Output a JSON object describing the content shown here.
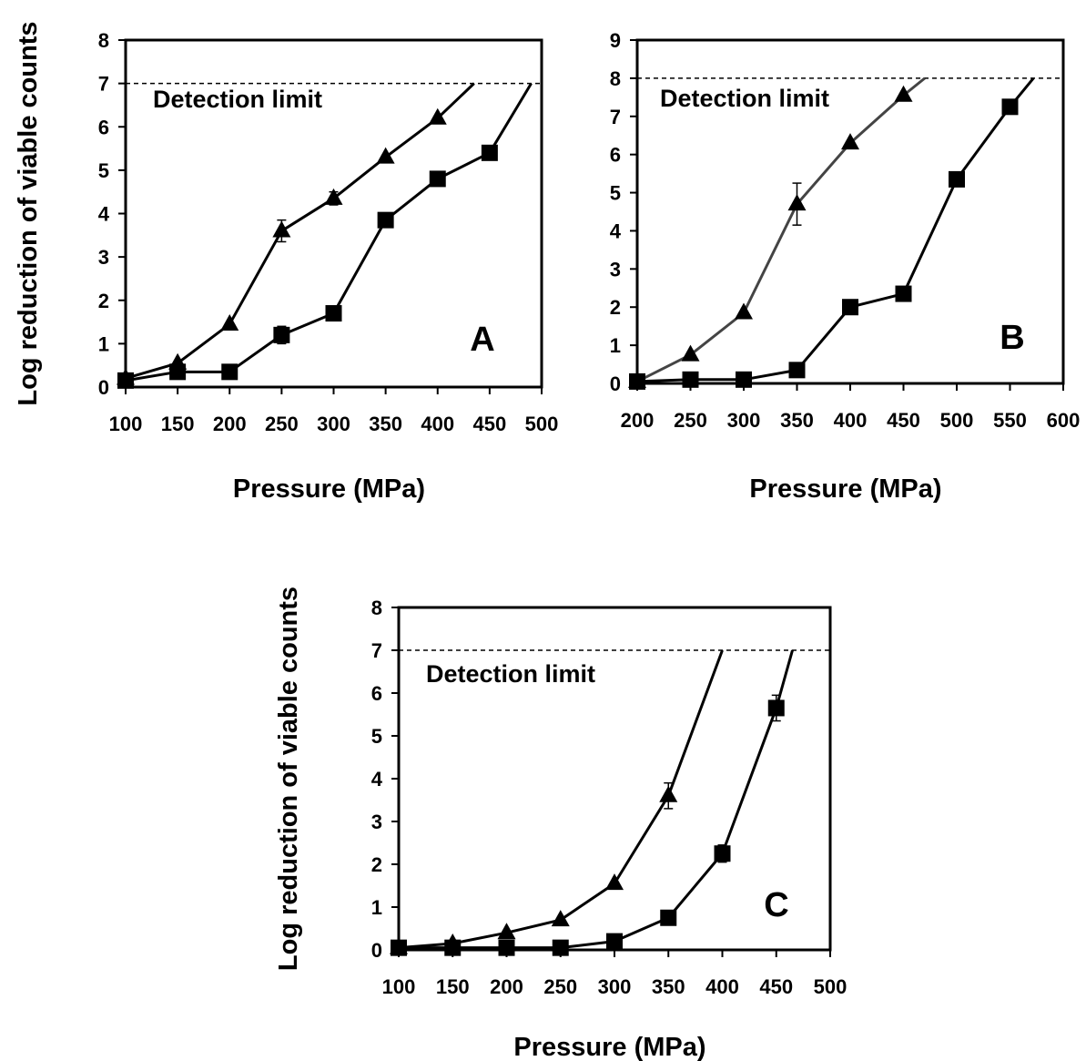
{
  "chart_data": [
    {
      "type": "line",
      "panel_label": "A",
      "xlabel": "Pressure (MPa)",
      "ylabel": "Log reduction of viable counts",
      "x_ticks": [
        100,
        150,
        200,
        250,
        300,
        350,
        400,
        450,
        500
      ],
      "y_ticks": [
        0,
        1,
        2,
        3,
        4,
        5,
        6,
        7,
        8
      ],
      "xlim": [
        100,
        500
      ],
      "ylim": [
        0,
        8
      ],
      "grid": false,
      "detection_limit": {
        "label": "Detection limit",
        "value": 7
      },
      "series": [
        {
          "marker": "triangle",
          "x": [
            100,
            150,
            200,
            250,
            300,
            350,
            400
          ],
          "y": [
            0.2,
            0.55,
            1.45,
            3.6,
            4.35,
            5.3,
            6.2
          ],
          "err": [
            0,
            0,
            0,
            0.25,
            0.15,
            0,
            0
          ],
          "extension_to": [
            435,
            7
          ]
        },
        {
          "marker": "square",
          "x": [
            100,
            150,
            200,
            250,
            300,
            350,
            400,
            450
          ],
          "y": [
            0.15,
            0.35,
            0.35,
            1.2,
            1.7,
            3.85,
            4.8,
            5.4
          ],
          "err": [
            0,
            0,
            0,
            0.2,
            0,
            0,
            0,
            0
          ],
          "extension_to": [
            490,
            7
          ]
        }
      ]
    },
    {
      "type": "line",
      "panel_label": "B",
      "xlabel": "Pressure (MPa)",
      "ylabel": "",
      "x_ticks": [
        200,
        250,
        300,
        350,
        400,
        450,
        500,
        550,
        600
      ],
      "y_ticks": [
        0,
        1,
        2,
        3,
        4,
        5,
        6,
        7,
        8,
        9
      ],
      "xlim": [
        200,
        600
      ],
      "ylim": [
        0,
        9
      ],
      "grid": false,
      "detection_limit": {
        "label": "Detection limit",
        "value": 8
      },
      "series": [
        {
          "marker": "triangle",
          "x": [
            200,
            250,
            300,
            350,
            400,
            450
          ],
          "y": [
            0.05,
            0.75,
            1.85,
            4.7,
            6.3,
            7.55
          ],
          "err": [
            0,
            0,
            0,
            0.55,
            0,
            0
          ],
          "extension_to": [
            470,
            8
          ]
        },
        {
          "marker": "square",
          "x": [
            200,
            250,
            300,
            350,
            400,
            450,
            500,
            550
          ],
          "y": [
            0.05,
            0.1,
            0.1,
            0.35,
            2.0,
            2.35,
            5.35,
            7.25
          ],
          "err": [
            0,
            0,
            0,
            0,
            0,
            0,
            0,
            0
          ],
          "extension_to": [
            572,
            8
          ]
        }
      ]
    },
    {
      "type": "line",
      "panel_label": "C",
      "xlabel": "Pressure (MPa)",
      "ylabel": "Log reduction of viable counts",
      "x_ticks": [
        100,
        150,
        200,
        250,
        300,
        350,
        400,
        450,
        500
      ],
      "y_ticks": [
        0,
        1,
        2,
        3,
        4,
        5,
        6,
        7,
        8
      ],
      "xlim": [
        100,
        500
      ],
      "ylim": [
        0,
        8
      ],
      "grid": false,
      "detection_limit": {
        "label": "Detection limit",
        "value": 7
      },
      "series": [
        {
          "marker": "triangle",
          "x": [
            100,
            150,
            200,
            250,
            300,
            350
          ],
          "y": [
            0.05,
            0.15,
            0.4,
            0.7,
            1.55,
            3.6
          ],
          "err": [
            0,
            0,
            0,
            0,
            0,
            0.3
          ],
          "extension_to": [
            400,
            7
          ]
        },
        {
          "marker": "square",
          "x": [
            100,
            150,
            200,
            250,
            300,
            350,
            400,
            450
          ],
          "y": [
            0.05,
            0.05,
            0.05,
            0.05,
            0.2,
            0.75,
            2.25,
            5.65
          ],
          "err": [
            0,
            0,
            0,
            0,
            0,
            0,
            0.2,
            0.3
          ],
          "extension_to": [
            465,
            7
          ]
        }
      ]
    }
  ]
}
